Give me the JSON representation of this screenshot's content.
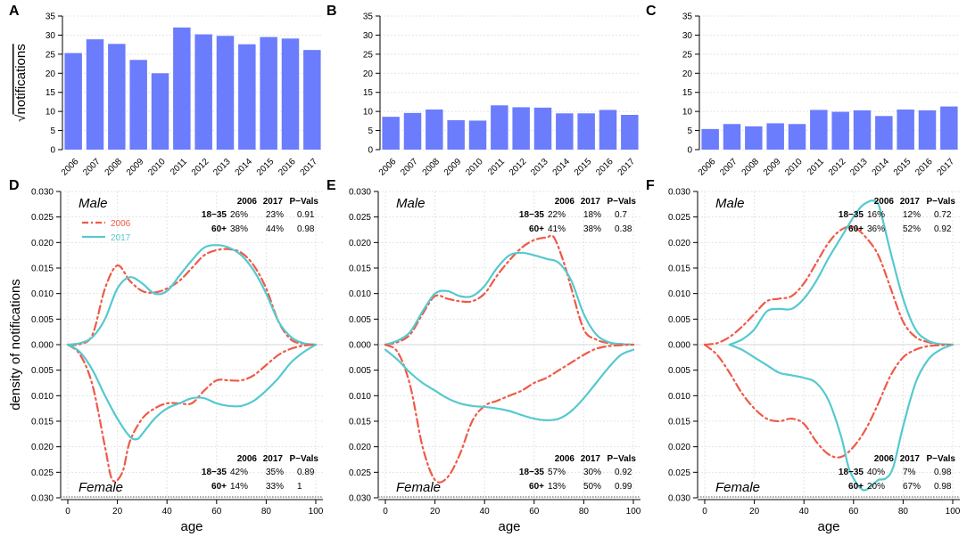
{
  "colors": {
    "bar": "#6b7cfc",
    "line2006": "#ef5a47",
    "line2017": "#55c9cf",
    "axis": "#000000",
    "grid": "#e4e4e4"
  },
  "chart_data": [
    {
      "panel": "A",
      "type": "bar",
      "ylabel": "notifications",
      "ylabel_prefix": "√",
      "ylim": [
        0,
        35
      ],
      "yticks": [
        "0",
        "5",
        "10",
        "15",
        "20",
        "25",
        "30",
        "35"
      ],
      "categories": [
        "2006",
        "2007",
        "2008",
        "2009",
        "2010",
        "2011",
        "2012",
        "2013",
        "2014",
        "2015",
        "2016",
        "2017"
      ],
      "values": [
        25.3,
        28.9,
        27.7,
        23.5,
        20.0,
        32.0,
        30.2,
        29.8,
        27.6,
        29.5,
        29.1,
        26.1
      ]
    },
    {
      "panel": "B",
      "type": "bar",
      "ylim": [
        0,
        35
      ],
      "yticks": [
        "0",
        "5",
        "10",
        "15",
        "20",
        "25",
        "30",
        "35"
      ],
      "categories": [
        "2006",
        "2007",
        "2008",
        "2009",
        "2010",
        "2011",
        "2012",
        "2013",
        "2014",
        "2015",
        "2016",
        "2017"
      ],
      "values": [
        8.6,
        9.6,
        10.5,
        7.7,
        7.6,
        11.6,
        11.1,
        11.0,
        9.5,
        9.5,
        10.4,
        9.1
      ]
    },
    {
      "panel": "C",
      "type": "bar",
      "ylim": [
        0,
        35
      ],
      "yticks": [
        "0",
        "5",
        "10",
        "15",
        "20",
        "25",
        "30",
        "35"
      ],
      "categories": [
        "2006",
        "2007",
        "2008",
        "2009",
        "2010",
        "2011",
        "2012",
        "2013",
        "2014",
        "2015",
        "2016",
        "2017"
      ],
      "values": [
        5.4,
        6.7,
        6.1,
        6.9,
        6.7,
        10.4,
        9.9,
        10.3,
        8.8,
        10.5,
        10.3,
        11.3
      ]
    },
    {
      "panel": "D",
      "type": "line",
      "xlabel": "age",
      "ylabel": "density of notifications",
      "xlim": [
        0,
        100
      ],
      "ylim": [
        -0.03,
        0.03
      ],
      "xticks": [
        "0",
        "20",
        "40",
        "60",
        "80",
        "100"
      ],
      "yticks": [
        "0.030",
        "0.025",
        "0.020",
        "0.015",
        "0.010",
        "0.005",
        "0.000",
        "0.005",
        "0.010",
        "0.015",
        "0.020",
        "0.025",
        "0.030"
      ],
      "legend": [
        "2006",
        "2017"
      ],
      "top_label": "Male",
      "bottom_label": "Female",
      "table_top": {
        "header": [
          "2006",
          "2017",
          "P−Vals"
        ],
        "rows": [
          [
            "18−35",
            "26%",
            "23%",
            "0.91"
          ],
          [
            "60+",
            "38%",
            "44%",
            "0.98"
          ]
        ]
      },
      "table_bottom": {
        "header": [
          "2006",
          "2017",
          "P−Vals"
        ],
        "rows": [
          [
            "18−35",
            "42%",
            "35%",
            "0.89"
          ],
          [
            "60+",
            "14%",
            "33%",
            "1"
          ]
        ]
      },
      "series": [
        {
          "name": "2006 male",
          "x": [
            0,
            5,
            10,
            15,
            20,
            25,
            30,
            35,
            40,
            45,
            50,
            55,
            60,
            65,
            70,
            75,
            80,
            85,
            90,
            95,
            100
          ],
          "y": [
            0,
            0.0001,
            0.002,
            0.011,
            0.0155,
            0.0125,
            0.0105,
            0.0102,
            0.011,
            0.0125,
            0.015,
            0.0175,
            0.0185,
            0.0187,
            0.018,
            0.0155,
            0.011,
            0.0045,
            0.001,
            0.0002,
            0
          ]
        },
        {
          "name": "2017 male",
          "x": [
            0,
            5,
            10,
            15,
            20,
            25,
            30,
            35,
            40,
            45,
            50,
            55,
            60,
            65,
            70,
            75,
            80,
            85,
            90,
            95,
            100
          ],
          "y": [
            0,
            0.0003,
            0.0015,
            0.005,
            0.011,
            0.0132,
            0.012,
            0.01,
            0.0105,
            0.0135,
            0.0165,
            0.019,
            0.0195,
            0.019,
            0.0175,
            0.0145,
            0.01,
            0.0045,
            0.0015,
            0.0003,
            0
          ]
        },
        {
          "name": "2006 female",
          "x": [
            0,
            5,
            10,
            15,
            18,
            22,
            25,
            30,
            35,
            40,
            45,
            50,
            55,
            60,
            65,
            70,
            75,
            80,
            85,
            90,
            95,
            100
          ],
          "y": [
            0,
            -0.002,
            -0.008,
            -0.02,
            -0.0265,
            -0.025,
            -0.019,
            -0.0145,
            -0.0125,
            -0.0115,
            -0.0115,
            -0.0115,
            -0.009,
            -0.007,
            -0.007,
            -0.007,
            -0.006,
            -0.004,
            -0.002,
            -0.0008,
            -0.0002,
            0
          ]
        },
        {
          "name": "2017 female",
          "x": [
            0,
            5,
            10,
            15,
            20,
            25,
            28,
            30,
            35,
            40,
            45,
            50,
            55,
            60,
            65,
            70,
            75,
            80,
            85,
            90,
            95,
            100
          ],
          "y": [
            0,
            -0.0015,
            -0.005,
            -0.01,
            -0.0145,
            -0.018,
            -0.0185,
            -0.0175,
            -0.0145,
            -0.0125,
            -0.0115,
            -0.0105,
            -0.0105,
            -0.0115,
            -0.012,
            -0.012,
            -0.011,
            -0.009,
            -0.0065,
            -0.0035,
            -0.0015,
            0
          ]
        }
      ]
    },
    {
      "panel": "E",
      "type": "line",
      "xlabel": "age",
      "xlim": [
        0,
        100
      ],
      "ylim": [
        -0.03,
        0.03
      ],
      "xticks": [
        "0",
        "20",
        "40",
        "60",
        "80",
        "100"
      ],
      "yticks": [
        "0.030",
        "0.025",
        "0.020",
        "0.015",
        "0.010",
        "0.005",
        "0.000",
        "0.005",
        "0.010",
        "0.015",
        "0.020",
        "0.025",
        "0.030"
      ],
      "top_label": "Male",
      "bottom_label": "Female",
      "table_top": {
        "header": [
          "2006",
          "2017",
          "P−Vals"
        ],
        "rows": [
          [
            "18−35",
            "22%",
            "18%",
            "0.7"
          ],
          [
            "60+",
            "41%",
            "38%",
            "0.38"
          ]
        ]
      },
      "table_bottom": {
        "header": [
          "2006",
          "2017",
          "P−Vals"
        ],
        "rows": [
          [
            "18−35",
            "57%",
            "30%",
            "0.92"
          ],
          [
            "60+",
            "13%",
            "50%",
            "0.99"
          ]
        ]
      },
      "series": [
        {
          "name": "2006 male",
          "x": [
            0,
            5,
            10,
            15,
            20,
            25,
            30,
            35,
            40,
            45,
            50,
            55,
            60,
            65,
            68,
            72,
            75,
            80,
            85,
            90,
            95,
            100
          ],
          "y": [
            0,
            0.0005,
            0.002,
            0.006,
            0.0095,
            0.009,
            0.0085,
            0.0085,
            0.01,
            0.0135,
            0.0165,
            0.019,
            0.0205,
            0.021,
            0.021,
            0.016,
            0.011,
            0.003,
            0.001,
            0.0003,
            0.0001,
            0
          ]
        },
        {
          "name": "2017 male",
          "x": [
            0,
            5,
            10,
            15,
            20,
            25,
            30,
            35,
            40,
            45,
            50,
            55,
            60,
            65,
            70,
            75,
            80,
            85,
            90,
            95,
            100
          ],
          "y": [
            0,
            0.0008,
            0.0025,
            0.0065,
            0.01,
            0.0105,
            0.0095,
            0.0095,
            0.0115,
            0.015,
            0.0175,
            0.018,
            0.0175,
            0.0168,
            0.016,
            0.0125,
            0.006,
            0.002,
            0.0005,
            0.0001,
            0
          ]
        },
        {
          "name": "2006 female",
          "x": [
            0,
            5,
            10,
            15,
            20,
            25,
            30,
            35,
            40,
            45,
            50,
            55,
            60,
            65,
            70,
            75,
            80,
            85,
            90,
            95,
            100
          ],
          "y": [
            0,
            -0.0015,
            -0.008,
            -0.02,
            -0.0265,
            -0.026,
            -0.0215,
            -0.015,
            -0.012,
            -0.011,
            -0.01,
            -0.009,
            -0.0075,
            -0.0065,
            -0.005,
            -0.0035,
            -0.002,
            -0.0008,
            -0.0003,
            -0.0001,
            0
          ]
        },
        {
          "name": "2017 female",
          "x": [
            0,
            5,
            10,
            15,
            20,
            25,
            30,
            35,
            40,
            45,
            50,
            55,
            60,
            65,
            70,
            75,
            80,
            85,
            90,
            95,
            100
          ],
          "y": [
            -0.001,
            -0.003,
            -0.0055,
            -0.0075,
            -0.009,
            -0.0105,
            -0.0115,
            -0.012,
            -0.0122,
            -0.0125,
            -0.013,
            -0.0138,
            -0.0145,
            -0.0148,
            -0.0145,
            -0.013,
            -0.0105,
            -0.0075,
            -0.0045,
            -0.002,
            -0.001
          ]
        }
      ]
    },
    {
      "panel": "F",
      "type": "line",
      "xlabel": "age",
      "xlim": [
        0,
        100
      ],
      "ylim": [
        -0.03,
        0.03
      ],
      "xticks": [
        "0",
        "20",
        "40",
        "60",
        "80",
        "100"
      ],
      "yticks": [
        "0.030",
        "0.025",
        "0.020",
        "0.015",
        "0.010",
        "0.005",
        "0.000",
        "0.005",
        "0.010",
        "0.015",
        "0.020",
        "0.025",
        "0.030"
      ],
      "top_label": "Male",
      "bottom_label": "Female",
      "table_top": {
        "header": [
          "2006",
          "2017",
          "P−Vals"
        ],
        "rows": [
          [
            "18−35",
            "16%",
            "12%",
            "0.72"
          ],
          [
            "60+",
            "36%",
            "52%",
            "0.92"
          ]
        ]
      },
      "table_bottom": {
        "header": [
          "2006",
          "2017",
          "P−Vals"
        ],
        "rows": [
          [
            "18−35",
            "40%",
            "7%",
            "0.98"
          ],
          [
            "60+",
            "20%",
            "67%",
            "0.98"
          ]
        ]
      },
      "series": [
        {
          "name": "2006 male",
          "x": [
            0,
            5,
            10,
            15,
            20,
            25,
            30,
            35,
            40,
            45,
            50,
            55,
            60,
            65,
            70,
            75,
            80,
            85,
            90,
            95,
            100
          ],
          "y": [
            0,
            0.0003,
            0.0015,
            0.0035,
            0.006,
            0.0085,
            0.009,
            0.0095,
            0.012,
            0.016,
            0.02,
            0.0225,
            0.023,
            0.021,
            0.0175,
            0.011,
            0.0045,
            0.0015,
            0.0005,
            0.0001,
            0
          ]
        },
        {
          "name": "2017 male",
          "x": [
            10,
            15,
            20,
            25,
            30,
            35,
            40,
            45,
            50,
            55,
            60,
            63,
            66,
            68,
            70,
            72,
            75,
            80,
            85,
            90,
            95,
            100
          ],
          "y": [
            0,
            0.001,
            0.003,
            0.0065,
            0.007,
            0.007,
            0.009,
            0.0125,
            0.017,
            0.021,
            0.025,
            0.027,
            0.028,
            0.0282,
            0.0275,
            0.024,
            0.018,
            0.009,
            0.003,
            0.0008,
            0.0001,
            0
          ]
        },
        {
          "name": "2006 female",
          "x": [
            0,
            5,
            10,
            15,
            20,
            25,
            30,
            35,
            40,
            45,
            50,
            55,
            60,
            65,
            70,
            75,
            80,
            85,
            90,
            95,
            100
          ],
          "y": [
            0,
            -0.002,
            -0.0055,
            -0.0095,
            -0.0125,
            -0.0145,
            -0.015,
            -0.0145,
            -0.0155,
            -0.019,
            -0.0215,
            -0.022,
            -0.02,
            -0.0165,
            -0.0115,
            -0.006,
            -0.0025,
            -0.001,
            -0.0003,
            -0.0001,
            0
          ]
        },
        {
          "name": "2017 female",
          "x": [
            10,
            15,
            20,
            25,
            30,
            35,
            40,
            45,
            50,
            55,
            58,
            61,
            64,
            67,
            70,
            73,
            76,
            80,
            85,
            90,
            95,
            100
          ],
          "y": [
            0,
            -0.001,
            -0.0025,
            -0.004,
            -0.0055,
            -0.006,
            -0.0065,
            -0.0075,
            -0.011,
            -0.018,
            -0.024,
            -0.027,
            -0.0285,
            -0.0278,
            -0.0265,
            -0.0262,
            -0.024,
            -0.016,
            -0.0075,
            -0.003,
            -0.001,
            0
          ]
        }
      ]
    }
  ]
}
